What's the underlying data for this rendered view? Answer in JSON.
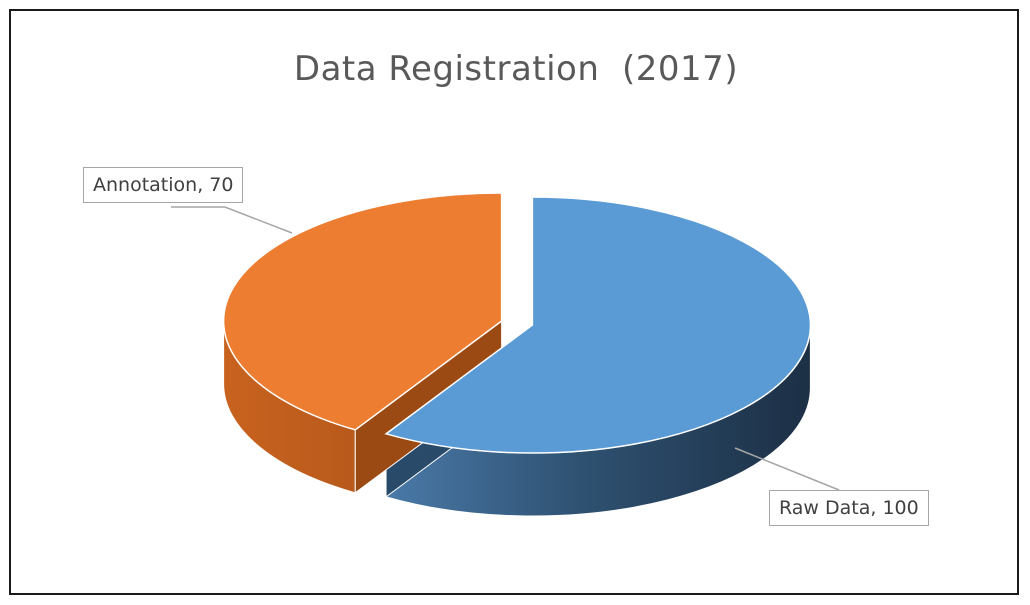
{
  "chart_data": {
    "type": "pie",
    "style": "3d-exploded",
    "title": "Data Registration  (2017)",
    "categories": [
      "Raw Data",
      "Annotation"
    ],
    "values": [
      100,
      70
    ],
    "colors": [
      "#5b9bd5",
      "#ed7d31"
    ],
    "data_labels": [
      "Raw Data, 100",
      "Annotation, 70"
    ],
    "legend": "none"
  }
}
